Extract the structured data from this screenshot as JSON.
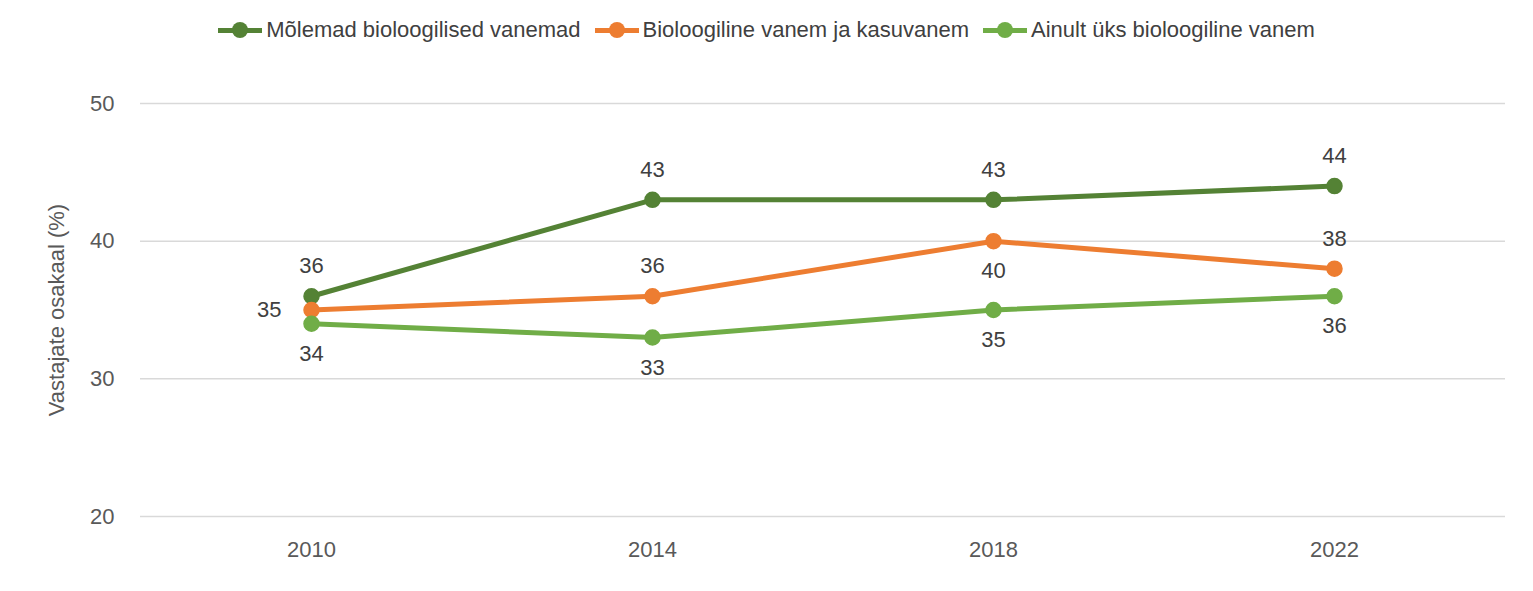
{
  "chart_data": {
    "type": "line",
    "y_label": "Vastajate osakaal (%)",
    "categories": [
      "2010",
      "2014",
      "2018",
      "2022"
    ],
    "series": [
      {
        "name": "Mõlemad bioloogilised vanemad",
        "color": "#548235",
        "values": [
          36,
          43,
          43,
          44
        ]
      },
      {
        "name": "Bioloogiline vanem ja kasuvanem",
        "color": "#ED7D31",
        "values": [
          35,
          36,
          40,
          38
        ]
      },
      {
        "name": "Ainult üks bioloogiline vanem",
        "color": "#70AD47",
        "values": [
          34,
          33,
          35,
          36
        ]
      }
    ],
    "ylim": [
      20,
      50
    ],
    "yticks": [
      20,
      30,
      40,
      50
    ],
    "grid": true,
    "legend": "top",
    "marker": "circle",
    "data_labels": true
  }
}
